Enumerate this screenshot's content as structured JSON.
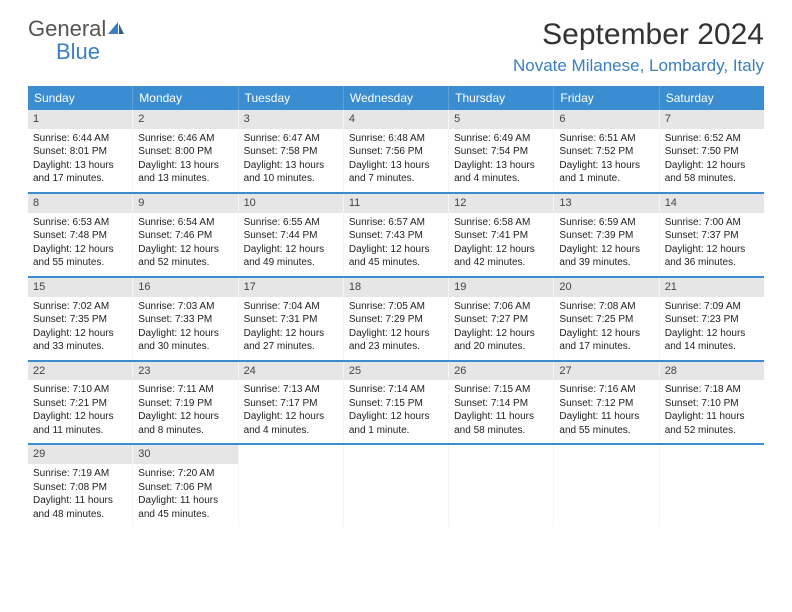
{
  "logo": {
    "textGeneral": "General",
    "textBlue": "Blue"
  },
  "title": "September 2024",
  "location": "Novate Milanese, Lombardy, Italy",
  "colors": {
    "headerBar": "#3a8dd0",
    "dayNumBg": "#e6e6e6",
    "accentBlue": "#3a7fc1",
    "text": "#222222"
  },
  "weekdays": [
    "Sunday",
    "Monday",
    "Tuesday",
    "Wednesday",
    "Thursday",
    "Friday",
    "Saturday"
  ],
  "weeks": [
    [
      {
        "n": "1",
        "sr": "Sunrise: 6:44 AM",
        "ss": "Sunset: 8:01 PM",
        "dl": "Daylight: 13 hours and 17 minutes."
      },
      {
        "n": "2",
        "sr": "Sunrise: 6:46 AM",
        "ss": "Sunset: 8:00 PM",
        "dl": "Daylight: 13 hours and 13 minutes."
      },
      {
        "n": "3",
        "sr": "Sunrise: 6:47 AM",
        "ss": "Sunset: 7:58 PM",
        "dl": "Daylight: 13 hours and 10 minutes."
      },
      {
        "n": "4",
        "sr": "Sunrise: 6:48 AM",
        "ss": "Sunset: 7:56 PM",
        "dl": "Daylight: 13 hours and 7 minutes."
      },
      {
        "n": "5",
        "sr": "Sunrise: 6:49 AM",
        "ss": "Sunset: 7:54 PM",
        "dl": "Daylight: 13 hours and 4 minutes."
      },
      {
        "n": "6",
        "sr": "Sunrise: 6:51 AM",
        "ss": "Sunset: 7:52 PM",
        "dl": "Daylight: 13 hours and 1 minute."
      },
      {
        "n": "7",
        "sr": "Sunrise: 6:52 AM",
        "ss": "Sunset: 7:50 PM",
        "dl": "Daylight: 12 hours and 58 minutes."
      }
    ],
    [
      {
        "n": "8",
        "sr": "Sunrise: 6:53 AM",
        "ss": "Sunset: 7:48 PM",
        "dl": "Daylight: 12 hours and 55 minutes."
      },
      {
        "n": "9",
        "sr": "Sunrise: 6:54 AM",
        "ss": "Sunset: 7:46 PM",
        "dl": "Daylight: 12 hours and 52 minutes."
      },
      {
        "n": "10",
        "sr": "Sunrise: 6:55 AM",
        "ss": "Sunset: 7:44 PM",
        "dl": "Daylight: 12 hours and 49 minutes."
      },
      {
        "n": "11",
        "sr": "Sunrise: 6:57 AM",
        "ss": "Sunset: 7:43 PM",
        "dl": "Daylight: 12 hours and 45 minutes."
      },
      {
        "n": "12",
        "sr": "Sunrise: 6:58 AM",
        "ss": "Sunset: 7:41 PM",
        "dl": "Daylight: 12 hours and 42 minutes."
      },
      {
        "n": "13",
        "sr": "Sunrise: 6:59 AM",
        "ss": "Sunset: 7:39 PM",
        "dl": "Daylight: 12 hours and 39 minutes."
      },
      {
        "n": "14",
        "sr": "Sunrise: 7:00 AM",
        "ss": "Sunset: 7:37 PM",
        "dl": "Daylight: 12 hours and 36 minutes."
      }
    ],
    [
      {
        "n": "15",
        "sr": "Sunrise: 7:02 AM",
        "ss": "Sunset: 7:35 PM",
        "dl": "Daylight: 12 hours and 33 minutes."
      },
      {
        "n": "16",
        "sr": "Sunrise: 7:03 AM",
        "ss": "Sunset: 7:33 PM",
        "dl": "Daylight: 12 hours and 30 minutes."
      },
      {
        "n": "17",
        "sr": "Sunrise: 7:04 AM",
        "ss": "Sunset: 7:31 PM",
        "dl": "Daylight: 12 hours and 27 minutes."
      },
      {
        "n": "18",
        "sr": "Sunrise: 7:05 AM",
        "ss": "Sunset: 7:29 PM",
        "dl": "Daylight: 12 hours and 23 minutes."
      },
      {
        "n": "19",
        "sr": "Sunrise: 7:06 AM",
        "ss": "Sunset: 7:27 PM",
        "dl": "Daylight: 12 hours and 20 minutes."
      },
      {
        "n": "20",
        "sr": "Sunrise: 7:08 AM",
        "ss": "Sunset: 7:25 PM",
        "dl": "Daylight: 12 hours and 17 minutes."
      },
      {
        "n": "21",
        "sr": "Sunrise: 7:09 AM",
        "ss": "Sunset: 7:23 PM",
        "dl": "Daylight: 12 hours and 14 minutes."
      }
    ],
    [
      {
        "n": "22",
        "sr": "Sunrise: 7:10 AM",
        "ss": "Sunset: 7:21 PM",
        "dl": "Daylight: 12 hours and 11 minutes."
      },
      {
        "n": "23",
        "sr": "Sunrise: 7:11 AM",
        "ss": "Sunset: 7:19 PM",
        "dl": "Daylight: 12 hours and 8 minutes."
      },
      {
        "n": "24",
        "sr": "Sunrise: 7:13 AM",
        "ss": "Sunset: 7:17 PM",
        "dl": "Daylight: 12 hours and 4 minutes."
      },
      {
        "n": "25",
        "sr": "Sunrise: 7:14 AM",
        "ss": "Sunset: 7:15 PM",
        "dl": "Daylight: 12 hours and 1 minute."
      },
      {
        "n": "26",
        "sr": "Sunrise: 7:15 AM",
        "ss": "Sunset: 7:14 PM",
        "dl": "Daylight: 11 hours and 58 minutes."
      },
      {
        "n": "27",
        "sr": "Sunrise: 7:16 AM",
        "ss": "Sunset: 7:12 PM",
        "dl": "Daylight: 11 hours and 55 minutes."
      },
      {
        "n": "28",
        "sr": "Sunrise: 7:18 AM",
        "ss": "Sunset: 7:10 PM",
        "dl": "Daylight: 11 hours and 52 minutes."
      }
    ],
    [
      {
        "n": "29",
        "sr": "Sunrise: 7:19 AM",
        "ss": "Sunset: 7:08 PM",
        "dl": "Daylight: 11 hours and 48 minutes."
      },
      {
        "n": "30",
        "sr": "Sunrise: 7:20 AM",
        "ss": "Sunset: 7:06 PM",
        "dl": "Daylight: 11 hours and 45 minutes."
      },
      {
        "empty": true
      },
      {
        "empty": true
      },
      {
        "empty": true
      },
      {
        "empty": true
      },
      {
        "empty": true
      }
    ]
  ]
}
